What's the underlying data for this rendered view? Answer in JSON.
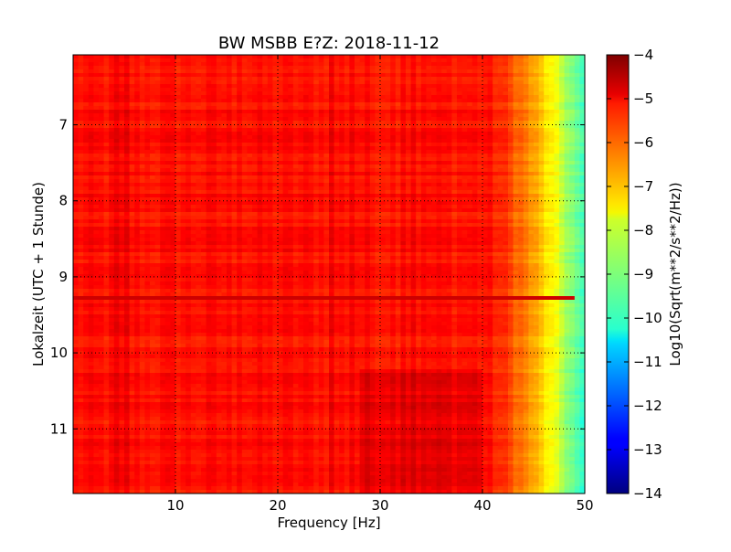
{
  "chart_data": {
    "type": "heatmap",
    "title": "BW MSBB E?Z: 2018-11-12",
    "xlabel": "Frequency [Hz]",
    "ylabel": "Lokalzeit (UTC + 1 Stunde)",
    "x_range": [
      0,
      50
    ],
    "y_range": [
      6.08,
      11.85
    ],
    "y_inverted": true,
    "x_ticks": [
      10,
      20,
      30,
      40,
      50
    ],
    "y_ticks": [
      7,
      8,
      9,
      10,
      11
    ],
    "grid": true,
    "colormap": "jet",
    "colorbar": {
      "label": "Log10(Sqrt(m**2/s**2/Hz))",
      "range": [
        -14,
        -4
      ],
      "ticks": [
        -4,
        -5,
        -6,
        -7,
        -8,
        -9,
        -10,
        -11,
        -12,
        -13,
        -14
      ]
    },
    "description_of_values": {
      "typical_level_0_to_40Hz": -5.4,
      "rolloff_start_hz": 40,
      "level_at_50hz": -9.8,
      "strong_band_times": [
        9.27
      ],
      "broadband_change_time": 10.2
    }
  }
}
